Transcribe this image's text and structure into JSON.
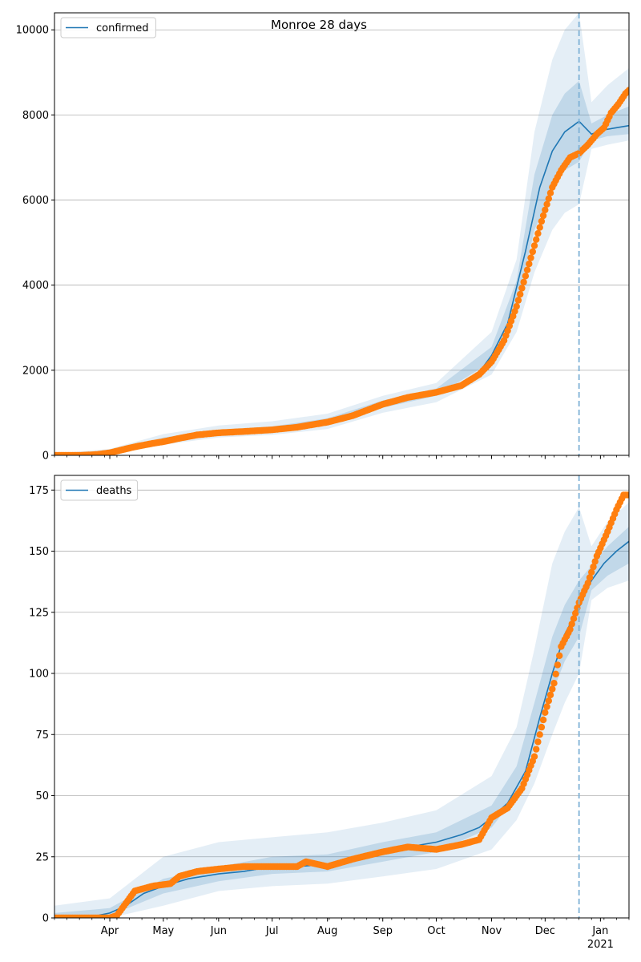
{
  "suptitle": "Monroe 28 days",
  "colors": {
    "model": "#1f77b4",
    "observed": "#ff7f0e",
    "band": "#1f77b4",
    "grid": "#b0b0b0",
    "forecast_line": "#7fb2d6"
  },
  "x_axis": {
    "start": "2020-03-01",
    "end": "2021-01-17",
    "month_labels": [
      {
        "date": "2020-04-01",
        "label": "Apr"
      },
      {
        "date": "2020-05-01",
        "label": "May"
      },
      {
        "date": "2020-06-01",
        "label": "Jun"
      },
      {
        "date": "2020-07-01",
        "label": "Jul"
      },
      {
        "date": "2020-08-01",
        "label": "Aug"
      },
      {
        "date": "2020-09-01",
        "label": "Sep"
      },
      {
        "date": "2020-10-01",
        "label": "Oct"
      },
      {
        "date": "2020-11-01",
        "label": "Nov"
      },
      {
        "date": "2020-12-01",
        "label": "Dec"
      },
      {
        "date": "2021-01-01",
        "label": "Jan"
      }
    ],
    "year_label": "2021",
    "forecast_start": "2020-12-20"
  },
  "chart_data": [
    {
      "type": "line",
      "legend": "confirmed",
      "legend_location": "upper left",
      "ylim": [
        0,
        10400
      ],
      "yticks": [
        0,
        2000,
        4000,
        6000,
        8000,
        10000
      ],
      "grid": "horizontal",
      "model": [
        [
          "2020-03-01",
          0
        ],
        [
          "2020-03-20",
          10
        ],
        [
          "2020-04-01",
          60
        ],
        [
          "2020-04-15",
          200
        ],
        [
          "2020-05-01",
          370
        ],
        [
          "2020-05-15",
          480
        ],
        [
          "2020-06-01",
          550
        ],
        [
          "2020-06-15",
          580
        ],
        [
          "2020-07-01",
          620
        ],
        [
          "2020-07-15",
          680
        ],
        [
          "2020-08-01",
          800
        ],
        [
          "2020-08-15",
          950
        ],
        [
          "2020-09-01",
          1200
        ],
        [
          "2020-09-15",
          1380
        ],
        [
          "2020-10-01",
          1480
        ],
        [
          "2020-10-15",
          1650
        ],
        [
          "2020-10-25",
          1950
        ],
        [
          "2020-11-01",
          2350
        ],
        [
          "2020-11-10",
          3100
        ],
        [
          "2020-11-20",
          4800
        ],
        [
          "2020-11-28",
          6300
        ],
        [
          "2020-12-05",
          7150
        ],
        [
          "2020-12-12",
          7600
        ],
        [
          "2020-12-20",
          7850
        ],
        [
          "2020-12-27",
          7550
        ],
        [
          "2021-01-03",
          7650
        ],
        [
          "2021-01-10",
          7700
        ],
        [
          "2021-01-17",
          7750
        ]
      ],
      "observed": [
        [
          "2020-03-01",
          0
        ],
        [
          "2020-03-15",
          0
        ],
        [
          "2020-03-25",
          20
        ],
        [
          "2020-04-01",
          60
        ],
        [
          "2020-04-08",
          130
        ],
        [
          "2020-04-15",
          200
        ],
        [
          "2020-04-25",
          280
        ],
        [
          "2020-05-01",
          320
        ],
        [
          "2020-05-10",
          400
        ],
        [
          "2020-05-20",
          480
        ],
        [
          "2020-06-01",
          530
        ],
        [
          "2020-06-15",
          560
        ],
        [
          "2020-07-01",
          600
        ],
        [
          "2020-07-15",
          660
        ],
        [
          "2020-08-01",
          780
        ],
        [
          "2020-08-15",
          930
        ],
        [
          "2020-09-01",
          1200
        ],
        [
          "2020-09-15",
          1360
        ],
        [
          "2020-10-01",
          1480
        ],
        [
          "2020-10-15",
          1640
        ],
        [
          "2020-10-25",
          1900
        ],
        [
          "2020-11-01",
          2200
        ],
        [
          "2020-11-08",
          2700
        ],
        [
          "2020-11-15",
          3500
        ],
        [
          "2020-11-22",
          4500
        ],
        [
          "2020-11-29",
          5500
        ],
        [
          "2020-12-05",
          6300
        ],
        [
          "2020-12-10",
          6700
        ],
        [
          "2020-12-15",
          7000
        ],
        [
          "2020-12-20",
          7100
        ],
        [
          "2020-12-25",
          7300
        ],
        [
          "2020-12-30",
          7550
        ],
        [
          "2021-01-03",
          7700
        ],
        [
          "2021-01-07",
          8050
        ],
        [
          "2021-01-11",
          8250
        ],
        [
          "2021-01-15",
          8500
        ],
        [
          "2021-01-17",
          8580
        ]
      ],
      "band_95": [
        [
          "2020-03-01",
          0,
          40
        ],
        [
          "2020-04-01",
          0,
          150
        ],
        [
          "2020-05-01",
          250,
          500
        ],
        [
          "2020-06-01",
          420,
          700
        ],
        [
          "2020-07-01",
          480,
          800
        ],
        [
          "2020-08-01",
          620,
          980
        ],
        [
          "2020-09-01",
          1000,
          1400
        ],
        [
          "2020-10-01",
          1250,
          1700
        ],
        [
          "2020-11-01",
          1900,
          2900
        ],
        [
          "2020-11-15",
          2900,
          4600
        ],
        [
          "2020-11-25",
          4300,
          7600
        ],
        [
          "2020-12-05",
          5300,
          9300
        ],
        [
          "2020-12-12",
          5700,
          10000
        ],
        [
          "2020-12-20",
          5900,
          10400
        ],
        [
          "2020-12-27",
          7200,
          8300
        ],
        [
          "2021-01-05",
          7300,
          8700
        ],
        [
          "2021-01-17",
          7400,
          9100
        ]
      ],
      "band_50": [
        [
          "2020-03-01",
          0,
          15
        ],
        [
          "2020-04-01",
          20,
          100
        ],
        [
          "2020-05-01",
          320,
          420
        ],
        [
          "2020-06-01",
          500,
          600
        ],
        [
          "2020-07-01",
          570,
          680
        ],
        [
          "2020-08-01",
          730,
          870
        ],
        [
          "2020-09-01",
          1120,
          1290
        ],
        [
          "2020-10-01",
          1400,
          1570
        ],
        [
          "2020-11-01",
          2200,
          2550
        ],
        [
          "2020-11-15",
          3500,
          4100
        ],
        [
          "2020-11-25",
          5300,
          6600
        ],
        [
          "2020-12-05",
          6200,
          8000
        ],
        [
          "2020-12-12",
          6700,
          8500
        ],
        [
          "2020-12-20",
          6900,
          8800
        ],
        [
          "2020-12-27",
          7400,
          7800
        ],
        [
          "2021-01-05",
          7500,
          8000
        ],
        [
          "2021-01-17",
          7550,
          8200
        ]
      ]
    },
    {
      "type": "line",
      "legend": "deaths",
      "legend_location": "upper left",
      "ylim": [
        0,
        181
      ],
      "yticks": [
        0,
        25,
        50,
        75,
        100,
        125,
        150,
        175
      ],
      "grid": "horizontal",
      "model": [
        [
          "2020-03-01",
          0
        ],
        [
          "2020-03-25",
          1
        ],
        [
          "2020-04-01",
          2
        ],
        [
          "2020-04-10",
          5
        ],
        [
          "2020-04-20",
          10
        ],
        [
          "2020-05-01",
          13
        ],
        [
          "2020-05-15",
          16
        ],
        [
          "2020-06-01",
          18
        ],
        [
          "2020-06-15",
          19
        ],
        [
          "2020-07-01",
          21
        ],
        [
          "2020-07-15",
          21
        ],
        [
          "2020-08-01",
          22
        ],
        [
          "2020-08-15",
          24
        ],
        [
          "2020-09-01",
          27
        ],
        [
          "2020-09-15",
          29
        ],
        [
          "2020-10-01",
          31
        ],
        [
          "2020-10-15",
          34
        ],
        [
          "2020-10-25",
          37
        ],
        [
          "2020-11-01",
          41
        ],
        [
          "2020-11-10",
          47
        ],
        [
          "2020-11-20",
          60
        ],
        [
          "2020-11-28",
          82
        ],
        [
          "2020-12-05",
          100
        ],
        [
          "2020-12-12",
          116
        ],
        [
          "2020-12-20",
          127
        ],
        [
          "2020-12-27",
          138
        ],
        [
          "2021-01-03",
          145
        ],
        [
          "2021-01-10",
          150
        ],
        [
          "2021-01-17",
          154
        ]
      ],
      "observed": [
        [
          "2020-03-01",
          0
        ],
        [
          "2020-03-20",
          0
        ],
        [
          "2020-04-01",
          0
        ],
        [
          "2020-04-05",
          1
        ],
        [
          "2020-04-10",
          6
        ],
        [
          "2020-04-15",
          11
        ],
        [
          "2020-04-25",
          13
        ],
        [
          "2020-05-05",
          14
        ],
        [
          "2020-05-10",
          17
        ],
        [
          "2020-05-20",
          19
        ],
        [
          "2020-06-01",
          20
        ],
        [
          "2020-06-15",
          21
        ],
        [
          "2020-07-01",
          21
        ],
        [
          "2020-07-15",
          21
        ],
        [
          "2020-07-20",
          23
        ],
        [
          "2020-08-01",
          21
        ],
        [
          "2020-08-15",
          24
        ],
        [
          "2020-09-01",
          27
        ],
        [
          "2020-09-15",
          29
        ],
        [
          "2020-10-01",
          28
        ],
        [
          "2020-10-15",
          30
        ],
        [
          "2020-10-25",
          32
        ],
        [
          "2020-11-01",
          41
        ],
        [
          "2020-11-10",
          45
        ],
        [
          "2020-11-18",
          53
        ],
        [
          "2020-11-25",
          66
        ],
        [
          "2020-12-01",
          84
        ],
        [
          "2020-12-06",
          96
        ],
        [
          "2020-12-10",
          111
        ],
        [
          "2020-12-15",
          118
        ],
        [
          "2020-12-20",
          129
        ],
        [
          "2020-12-25",
          137
        ],
        [
          "2020-12-30",
          148
        ],
        [
          "2021-01-05",
          158
        ],
        [
          "2021-01-10",
          167
        ],
        [
          "2021-01-14",
          173
        ],
        [
          "2021-01-17",
          173
        ]
      ],
      "band_95": [
        [
          "2020-03-01",
          0,
          5
        ],
        [
          "2020-04-01",
          0,
          8
        ],
        [
          "2020-05-01",
          5,
          25
        ],
        [
          "2020-06-01",
          11,
          31
        ],
        [
          "2020-07-01",
          13,
          33
        ],
        [
          "2020-08-01",
          14,
          35
        ],
        [
          "2020-09-01",
          17,
          39
        ],
        [
          "2020-10-01",
          20,
          44
        ],
        [
          "2020-11-01",
          28,
          58
        ],
        [
          "2020-11-15",
          40,
          78
        ],
        [
          "2020-11-25",
          55,
          110
        ],
        [
          "2020-12-05",
          75,
          145
        ],
        [
          "2020-12-12",
          88,
          158
        ],
        [
          "2020-12-20",
          100,
          168
        ],
        [
          "2020-12-27",
          130,
          152
        ],
        [
          "2021-01-05",
          135,
          162
        ],
        [
          "2021-01-17",
          138,
          170
        ]
      ],
      "band_50": [
        [
          "2020-03-01",
          0,
          2
        ],
        [
          "2020-04-01",
          1,
          4
        ],
        [
          "2020-05-01",
          10,
          16
        ],
        [
          "2020-06-01",
          15,
          21
        ],
        [
          "2020-07-01",
          18,
          25
        ],
        [
          "2020-08-01",
          19,
          26
        ],
        [
          "2020-09-01",
          23,
          31
        ],
        [
          "2020-10-01",
          27,
          35
        ],
        [
          "2020-11-01",
          37,
          46
        ],
        [
          "2020-11-15",
          50,
          62
        ],
        [
          "2020-11-25",
          70,
          88
        ],
        [
          "2020-12-05",
          92,
          115
        ],
        [
          "2020-12-12",
          105,
          128
        ],
        [
          "2020-12-20",
          115,
          138
        ],
        [
          "2020-12-27",
          134,
          144
        ],
        [
          "2021-01-05",
          140,
          152
        ],
        [
          "2021-01-17",
          145,
          160
        ]
      ]
    }
  ]
}
